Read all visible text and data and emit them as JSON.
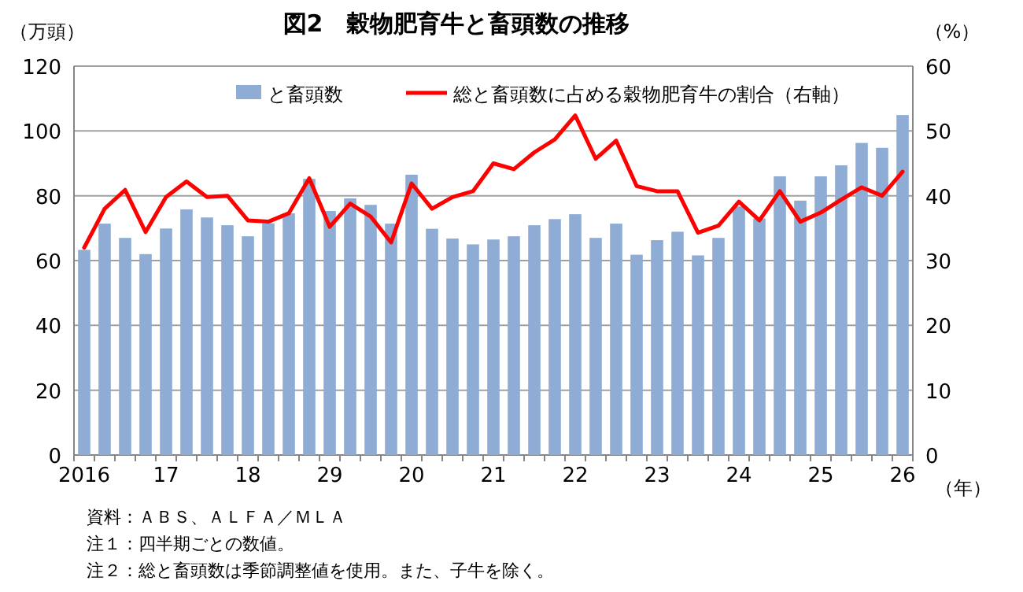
{
  "chart_data": {
    "type": "bar",
    "title": "図2　穀物肥育牛と畜頭数の推移",
    "ylabel": "（万頭）",
    "y2label": "（%）",
    "xlabel": "（年）",
    "categories": [
      "2016",
      null,
      null,
      null,
      "17",
      null,
      null,
      null,
      "18",
      null,
      null,
      null,
      "29",
      null,
      null,
      null,
      "20",
      null,
      null,
      null,
      "21",
      null,
      null,
      null,
      "22",
      null,
      null,
      null,
      "23",
      null,
      null,
      null,
      "24",
      null,
      null,
      null,
      "25",
      null,
      null,
      null,
      "26"
    ],
    "series": [
      {
        "name": "と畜頭数",
        "color": "#8eacd4",
        "values": [
          63.3,
          71.4,
          67,
          62,
          69.9,
          75.8,
          73.3,
          70.9,
          67.5,
          71.5,
          74.6,
          85.2,
          75.3,
          79.2,
          77.2,
          71.4,
          86.5,
          69.8,
          66.8,
          65,
          66.5,
          67.5,
          70.9,
          72.8,
          74.3,
          67,
          71.4,
          61.8,
          66.3,
          68.9,
          61.6,
          67,
          76.7,
          73,
          86,
          78.5,
          86,
          89.4,
          96.3,
          94.8,
          104.9
        ]
      },
      {
        "name": "総と畜頭数に占める穀物肥育牛の割合（右軸）",
        "type": "line",
        "axis": "y2",
        "color": "#ff0000",
        "values": [
          32,
          38,
          40.9,
          34.4,
          39.8,
          42.2,
          39.8,
          40,
          36.2,
          36,
          37.3,
          42.7,
          35.2,
          38.8,
          36.8,
          32.8,
          41.9,
          38,
          39.8,
          40.7,
          45,
          44.1,
          46.7,
          48.7,
          52.4,
          45.7,
          48.5,
          41.5,
          40.7,
          40.7,
          34.3,
          35.4,
          39.1,
          36.2,
          40.7,
          36,
          37.4,
          39.4,
          41.3,
          40,
          43.7
        ]
      }
    ],
    "ylim": [
      0,
      120
    ],
    "yticks": [
      0,
      20,
      40,
      60,
      80,
      100,
      120
    ],
    "y2lim": [
      0,
      60
    ],
    "y2ticks": [
      0,
      10,
      20,
      30,
      40,
      50,
      60
    ],
    "grid": "y",
    "legend": "top",
    "annotations": [
      "資料：ＡＢＳ、ＡＬＦＡ／ＭＬＡ",
      "注１：四半期ごとの数値。",
      "注２：総と畜頭数は季節調整値を使用。また、子牛を除く。"
    ]
  }
}
